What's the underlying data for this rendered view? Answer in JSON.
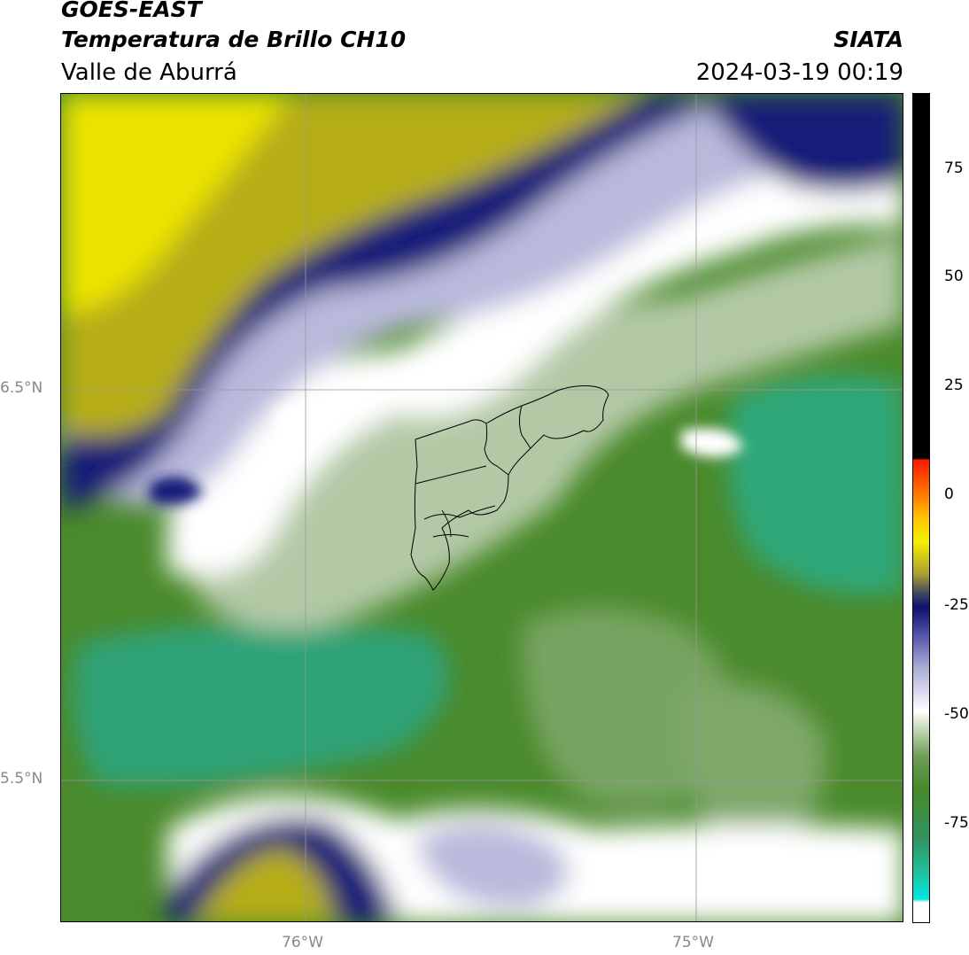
{
  "header": {
    "satellite": "GOES-EAST",
    "product": "Temperatura de Brillo CH10",
    "region": "Valle de Aburrá",
    "source": "SIATA",
    "datetime": "2024-03-19 00:19"
  },
  "map": {
    "x_ticks": [
      {
        "label": "76°W",
        "lon": -76.0
      },
      {
        "label": "75°W",
        "lon": -75.0
      }
    ],
    "y_ticks": [
      {
        "label": "6.5°N",
        "lat": 6.5
      },
      {
        "label": "5.5°N",
        "lat": 5.5
      }
    ],
    "lon_range": [
      -76.625,
      -74.465
    ],
    "lat_range": [
      5.13,
      7.25
    ]
  },
  "colorbar": {
    "ticks": [
      "75",
      "50",
      "25",
      "0",
      "-25",
      "-50",
      "-75"
    ],
    "tick_values": [
      75,
      50,
      25,
      0,
      -25,
      -50,
      -75
    ],
    "range": [
      -97,
      93
    ]
  },
  "colors": {
    "yellow": "#e8e000",
    "olive": "#b6ad18",
    "navy": "#131a78",
    "lavender": "#b9b9dc",
    "white": "#ffffff",
    "pale_green": "#b3c9a6",
    "mid_green": "#6e9c55",
    "dark_green": "#468a2a",
    "teal": "#2fa378"
  }
}
